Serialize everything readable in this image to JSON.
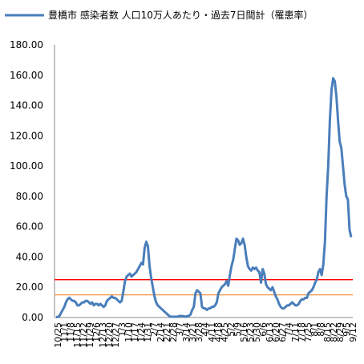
{
  "chart_data": {
    "type": "line",
    "series": [
      {
        "name": "豊橋市 感染者数 人口10万人あたり・過去7日間計（罹患率）",
        "color": "#4a7ebb",
        "values": [
          0.3,
          0.3,
          1,
          3,
          5,
          7,
          10,
          12,
          13,
          12,
          11,
          11,
          10,
          8,
          8,
          9,
          10,
          10,
          11,
          11,
          10,
          9,
          10,
          8,
          9,
          9,
          8,
          9,
          8,
          7,
          8,
          11,
          12,
          13,
          14,
          13,
          13,
          12,
          11,
          10,
          11,
          17,
          24,
          27,
          28,
          29,
          27,
          28,
          29,
          30,
          32,
          34,
          36,
          35,
          46,
          50,
          47,
          34,
          26,
          20,
          14,
          10,
          8,
          7,
          6,
          5,
          4,
          3,
          2,
          1,
          0.5,
          0.5,
          0.5,
          0.5,
          0.5,
          1,
          1,
          1,
          0.8,
          0.5,
          1,
          1,
          2,
          5,
          7,
          16,
          18,
          17,
          16,
          7,
          6,
          6,
          5,
          6,
          6,
          7,
          7,
          8,
          10,
          16,
          18,
          20,
          21,
          22,
          24,
          21,
          28,
          34,
          38,
          45,
          52,
          51,
          48,
          49,
          52,
          48,
          40,
          34,
          32,
          31,
          33,
          32,
          33,
          31,
          30,
          23,
          32,
          29,
          22,
          20,
          19,
          18,
          20,
          17,
          14,
          12,
          9,
          7,
          6,
          6,
          7,
          8,
          8,
          9,
          10,
          9,
          8,
          8,
          9,
          11,
          12,
          12,
          13,
          13,
          16,
          17,
          18,
          20,
          23,
          25,
          30,
          32,
          28,
          35,
          50,
          80,
          100,
          130,
          150,
          158,
          156,
          146,
          130,
          116,
          112,
          100,
          88,
          80,
          78,
          58,
          53
        ]
      }
    ],
    "x_tick_labels": [
      "10/25",
      "11/1",
      "11/8",
      "11/15",
      "11/22",
      "11/29",
      "12/6",
      "12/13",
      "12/20",
      "12/27",
      "1/3",
      "1/10",
      "1/17",
      "1/24",
      "1/31",
      "2/7",
      "2/14",
      "2/21",
      "2/28",
      "3/7",
      "3/14",
      "3/21",
      "3/28",
      "4/4",
      "4/11",
      "4/18",
      "4/25",
      "5/2",
      "5/9",
      "5/16",
      "5/23",
      "5/30",
      "6/6",
      "6/13",
      "6/20",
      "6/27",
      "7/4",
      "7/11",
      "7/18",
      "7/25",
      "8/1",
      "8/8",
      "8/15",
      "8/22",
      "8/29",
      "9/5",
      "9/12"
    ],
    "y_tick_labels": [
      "0.00",
      "20.00",
      "40.00",
      "60.00",
      "80.00",
      "100.00",
      "120.00",
      "140.00",
      "160.00",
      "180.00"
    ],
    "ylim": [
      0,
      180
    ],
    "reference_lines": [
      {
        "value": 25,
        "color": "#ff0000"
      },
      {
        "value": 15,
        "color": "#f4a460"
      }
    ],
    "grid": false,
    "legend_position": "top-left"
  }
}
